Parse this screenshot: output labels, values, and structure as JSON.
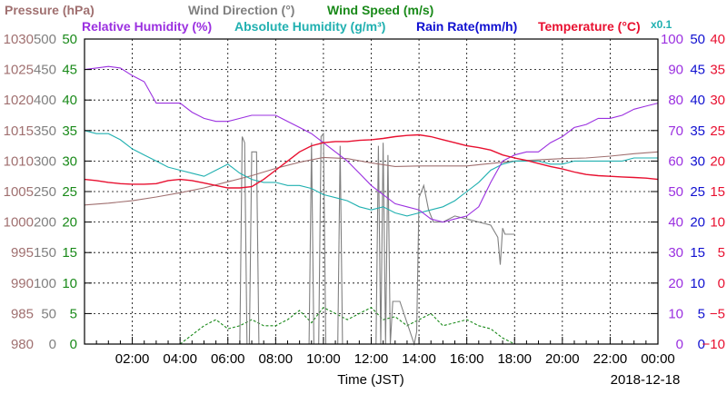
{
  "chart_data": {
    "type": "line",
    "xlabel": "Time (JST)",
    "date": "2018-12-18",
    "x_ticks": [
      "02:00",
      "04:00",
      "06:00",
      "08:00",
      "10:00",
      "12:00",
      "14:00",
      "16:00",
      "18:00",
      "20:00",
      "22:00",
      "00:00"
    ],
    "xlim": [
      "00:00",
      "24:00"
    ],
    "grid": true,
    "header": {
      "row1": [
        {
          "text": "Pressure (hPa)",
          "color": "#a07070"
        },
        {
          "text": "Wind Direction (°)",
          "color": "#808080"
        },
        {
          "text": "Wind Speed (m/s)",
          "color": "#1a8a1a"
        }
      ],
      "row2": [
        {
          "text": "Relative Humidity (%)",
          "color": "#9b30e0"
        },
        {
          "text": "Absolute Humidity (g/m³)",
          "color": "#20b0b0"
        },
        {
          "text": "Rain Rate(mm/h)",
          "color": "#1010d0"
        },
        {
          "text": "Temperature (°C)",
          "color": "#e81030"
        },
        {
          "text": "x0.1",
          "color": "#20b0b0"
        }
      ]
    },
    "axes_left": [
      {
        "name": "Pressure",
        "unit": "hPa",
        "color": "#a07070",
        "ticks": [
          "1030",
          "1025",
          "1020",
          "1015",
          "1010",
          "1005",
          "1000",
          "995",
          "990",
          "985",
          "980"
        ],
        "ylim": [
          980,
          1030
        ]
      },
      {
        "name": "Wind Direction",
        "unit": "°",
        "color": "#808080",
        "ticks": [
          "500",
          "450",
          "400",
          "350",
          "300",
          "250",
          "200",
          "150",
          "100",
          "50",
          "0"
        ],
        "ylim": [
          0,
          500
        ]
      },
      {
        "name": "Wind Speed",
        "unit": "m/s",
        "color": "#1a8a1a",
        "ticks": [
          "50",
          "45",
          "40",
          "35",
          "30",
          "25",
          "20",
          "15",
          "10",
          "5",
          "0"
        ],
        "ylim": [
          0,
          50
        ]
      }
    ],
    "axes_right": [
      {
        "name": "Relative Humidity",
        "unit": "%",
        "color": "#9b30e0",
        "ticks": [
          "100",
          "90",
          "80",
          "70",
          "60",
          "50",
          "40",
          "30",
          "20",
          "10",
          "0"
        ],
        "ylim": [
          0,
          100
        ]
      },
      {
        "name": "Rain Rate",
        "unit": "mm/h",
        "color": "#1010d0",
        "ticks": [
          "50",
          "45",
          "40",
          "35",
          "30",
          "25",
          "20",
          "15",
          "10",
          "5",
          "0"
        ],
        "ylim": [
          0,
          50
        ]
      },
      {
        "name": "Temperature",
        "unit": "°C",
        "color": "#e81030",
        "ticks": [
          "40",
          "35",
          "30",
          "25",
          "20",
          "15",
          "10",
          "5",
          "0",
          "−5",
          "−10"
        ],
        "ylim": [
          -10,
          40
        ]
      }
    ],
    "series": [
      {
        "name": "Pressure (hPa)",
        "color": "#a07070",
        "axis": "pressure",
        "x": [
          0,
          1,
          2,
          3,
          4,
          5,
          6,
          7,
          8,
          9,
          10,
          11,
          12,
          13,
          14,
          15,
          16,
          17,
          18,
          19,
          20,
          21,
          22,
          23,
          24
        ],
        "y": [
          1002.8,
          1003.1,
          1003.5,
          1004.1,
          1004.8,
          1005.6,
          1006.6,
          1007.6,
          1008.8,
          1009.8,
          1010.6,
          1010.4,
          1009.7,
          1009.1,
          1009.2,
          1009.2,
          1009.2,
          1009.6,
          1010.0,
          1010.2,
          1010.4,
          1010.5,
          1010.8,
          1011.2,
          1011.5
        ]
      },
      {
        "name": "Wind Direction (°)",
        "color": "#808080",
        "axis": "wind_dir",
        "x": [
          6.5,
          6.6,
          6.7,
          6.8,
          6.9,
          7.0,
          7.1,
          7.2,
          7.3,
          7.4,
          9.4,
          9.5,
          9.6,
          9.8,
          9.9,
          10.0,
          10.1,
          10.2,
          10.6,
          10.7,
          10.8,
          11.2,
          12.2,
          12.3,
          12.4,
          12.5,
          12.6,
          12.7,
          12.8,
          12.9,
          13.0,
          13.2,
          13.8,
          13.9,
          14.0,
          14.2,
          14.4,
          14.6,
          15.0,
          15.5,
          16.0,
          16.5,
          17.0,
          17.3,
          17.4,
          17.5,
          17.6,
          17.8,
          18.0
        ],
        "y": [
          0,
          340,
          330,
          0,
          0,
          315,
          315,
          315,
          0,
          0,
          0,
          330,
          0,
          0,
          340,
          345,
          0,
          0,
          0,
          325,
          0,
          0,
          0,
          325,
          0,
          330,
          0,
          310,
          0,
          70,
          70,
          70,
          0,
          20,
          240,
          260,
          220,
          200,
          200,
          210,
          205,
          200,
          195,
          175,
          130,
          190,
          180,
          180,
          180
        ]
      },
      {
        "name": "Wind Speed (m/s)",
        "color": "#1a8a1a",
        "axis": "wind_speed",
        "x": [
          0,
          1,
          2,
          3,
          4,
          4.5,
          5,
          5.5,
          6,
          6.5,
          7,
          7.5,
          8,
          8.5,
          9,
          9.5,
          10,
          10.5,
          11,
          11.5,
          12,
          12.5,
          13,
          13.5,
          14,
          14.5,
          15,
          15.5,
          16,
          16.5,
          17,
          17.5,
          18,
          19,
          20,
          21,
          22,
          23,
          24
        ],
        "y": [
          0,
          0,
          0,
          0,
          0,
          1.5,
          3,
          4,
          2.5,
          3,
          4,
          3,
          3,
          4,
          5.5,
          3.5,
          6,
          5,
          4,
          5,
          6,
          4,
          4.5,
          3,
          4,
          5,
          3,
          3.5,
          4,
          3,
          2.5,
          1,
          0,
          0,
          0,
          0,
          0,
          0,
          0
        ]
      },
      {
        "name": "Relative Humidity (%)",
        "color": "#9b30e0",
        "axis": "rh",
        "x": [
          0,
          0.5,
          1,
          1.5,
          2,
          2.5,
          3,
          3.5,
          4,
          4.5,
          5,
          5.5,
          6,
          6.5,
          7,
          7.5,
          8,
          8.5,
          9,
          9.5,
          10,
          10.5,
          11,
          11.5,
          12,
          12.5,
          13,
          13.5,
          14,
          14.5,
          15,
          15.5,
          16,
          16.5,
          17,
          17.5,
          18,
          18.5,
          19,
          19.5,
          20,
          20.5,
          21,
          21.5,
          22,
          22.5,
          23,
          23.5,
          24
        ],
        "y": [
          90,
          90.5,
          91,
          90.5,
          88,
          86,
          79,
          79,
          79,
          76,
          74,
          73,
          73,
          74,
          75,
          75,
          75,
          73,
          71,
          69,
          66,
          63,
          60,
          56,
          52,
          49,
          46,
          45,
          44,
          41,
          40,
          41,
          42,
          45,
          53,
          60,
          62,
          63,
          63,
          66,
          68,
          71,
          72,
          74,
          74,
          75,
          77,
          78,
          79
        ]
      },
      {
        "name": "Absolute Humidity (g/m³) x0.1",
        "color": "#20b0b0",
        "axis": "ah",
        "x": [
          0,
          0.5,
          1,
          1.5,
          2,
          2.5,
          3,
          3.5,
          4,
          4.5,
          5,
          5.5,
          6,
          6.5,
          7,
          7.5,
          8,
          8.5,
          9,
          9.5,
          10,
          10.5,
          11,
          11.5,
          12,
          12.5,
          13,
          13.5,
          14,
          14.5,
          15,
          15.5,
          16,
          16.5,
          17,
          17.5,
          18,
          18.5,
          19,
          19.5,
          20,
          20.5,
          21,
          21.5,
          22,
          22.5,
          23,
          23.5,
          24
        ],
        "y": [
          35,
          34.5,
          34.5,
          33.5,
          32,
          31,
          30,
          29,
          28.5,
          28,
          27.5,
          28.5,
          29.5,
          28,
          27,
          26.5,
          26.5,
          26,
          26,
          25.5,
          24.5,
          24,
          23.5,
          22.5,
          22,
          22.5,
          21.5,
          21,
          21.5,
          22,
          22.5,
          23.5,
          25,
          26.5,
          28.5,
          29.5,
          30,
          30,
          30,
          29.5,
          29.5,
          30,
          30,
          30,
          30,
          30,
          30.5,
          30.5,
          30.5
        ]
      },
      {
        "name": "Temperature (°C)",
        "color": "#e81030",
        "axis": "temp",
        "x": [
          0,
          0.5,
          1,
          1.5,
          2,
          2.5,
          3,
          3.5,
          4,
          4.5,
          5,
          5.5,
          6,
          6.5,
          7,
          7.5,
          8,
          8.5,
          9,
          9.5,
          10,
          10.5,
          11,
          11.5,
          12,
          12.5,
          13,
          13.5,
          14,
          14.5,
          15,
          15.5,
          16,
          16.5,
          17,
          17.5,
          18,
          18.5,
          19,
          19.5,
          20,
          20.5,
          21,
          21.5,
          22,
          22.5,
          23,
          23.5,
          24
        ],
        "y": [
          17,
          16.8,
          16.5,
          16.3,
          16.2,
          16.2,
          16.3,
          16.8,
          17,
          16.8,
          16.4,
          16,
          15.6,
          15.6,
          15.8,
          17,
          18.5,
          20,
          21.5,
          22.5,
          23,
          23.2,
          23.2,
          23.4,
          23.5,
          23.7,
          24,
          24.2,
          24.3,
          24,
          23.5,
          23,
          22.5,
          22.2,
          21.8,
          21,
          20.5,
          20.1,
          19.6,
          19.1,
          18.7,
          18.2,
          17.8,
          17.6,
          17.5,
          17.4,
          17.3,
          17.2,
          17
        ]
      },
      {
        "name": "Rain Rate(mm/h)",
        "color": "#1010d0",
        "axis": "rain",
        "x": [
          0,
          24
        ],
        "y": [
          0,
          0
        ]
      }
    ]
  }
}
